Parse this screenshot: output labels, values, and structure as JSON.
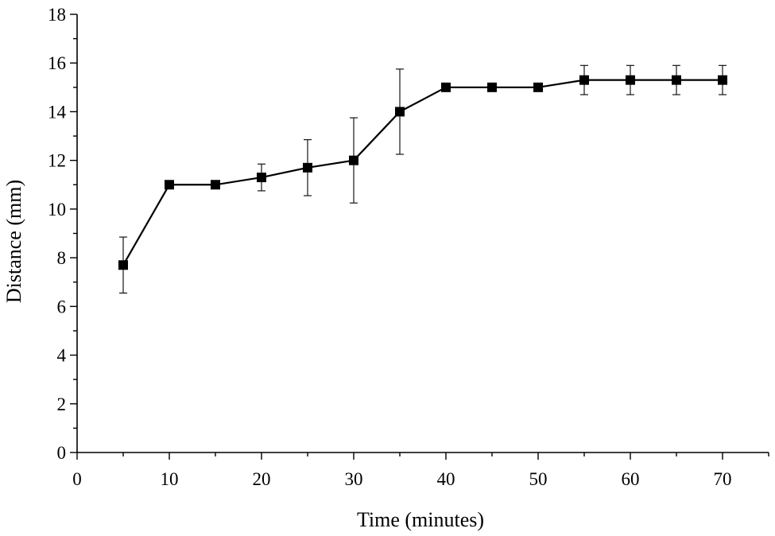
{
  "chart_data": {
    "type": "line",
    "title": "",
    "xlabel": "Time (minutes)",
    "ylabel": "Distance (mm)",
    "xlim": [
      0,
      75
    ],
    "ylim": [
      0,
      18
    ],
    "x_ticks": [
      0,
      10,
      20,
      30,
      40,
      50,
      60,
      70
    ],
    "y_ticks": [
      0,
      2,
      4,
      6,
      8,
      10,
      12,
      14,
      16,
      18
    ],
    "grid": false,
    "legend": "none",
    "color": "#000000",
    "marker": "square",
    "series": [
      {
        "x": [
          5,
          10,
          15,
          20,
          25,
          30,
          35,
          40,
          45,
          50,
          55,
          60,
          65,
          70
        ],
        "y": [
          7.7,
          11.0,
          11.0,
          11.3,
          11.7,
          12.0,
          14.0,
          15.0,
          15.0,
          15.0,
          15.3,
          15.3,
          15.3,
          15.3
        ],
        "error": [
          1.15,
          0,
          0,
          0.55,
          1.15,
          1.75,
          1.75,
          0,
          0,
          0,
          0.6,
          0.6,
          0.6,
          0.6
        ]
      }
    ]
  }
}
